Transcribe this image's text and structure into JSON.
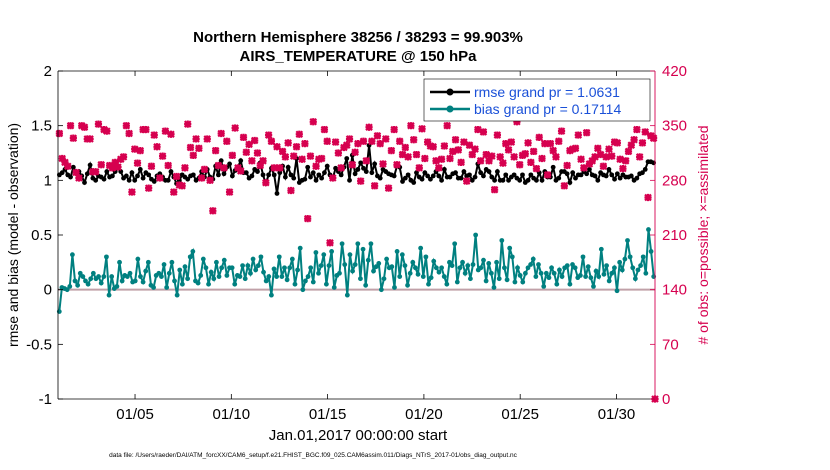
{
  "chart_data": {
    "type": "line",
    "title_line1": "Northern Hemisphere 38256 / 38293 = 99.903%",
    "title_line2": "AIRS_TEMPERATURE @ 150 hPa",
    "xlabel": "Jan.01,2017 00:00:00 start",
    "ylabel_left": "rmse and bias (model - observation)",
    "ylabel_right": "# of obs: o=possible; ×=assimilated",
    "footer": "data file: /Users/raeder/DAI/ATM_forcXX/CAM6_setup/f.e21.FHIST_BGC.f09_025.CAM6assim.011/Diags_NTrS_2017-01/obs_diag_output.nc",
    "xlim": [
      1.0,
      32.0
    ],
    "ylim_left": [
      -1,
      2
    ],
    "ylim_right": [
      0,
      420
    ],
    "x_ticks": [
      {
        "value": 5,
        "label": "01/05"
      },
      {
        "value": 10,
        "label": "01/10"
      },
      {
        "value": 15,
        "label": "01/15"
      },
      {
        "value": 20,
        "label": "01/20"
      },
      {
        "value": 25,
        "label": "01/25"
      },
      {
        "value": 30,
        "label": "01/30"
      }
    ],
    "y_ticks_left": [
      "-1",
      "-0.5",
      "0",
      "0.5",
      "1",
      "1.5",
      "2"
    ],
    "y_ticks_right": [
      "0",
      "70",
      "140",
      "210",
      "280",
      "350",
      "420"
    ],
    "colors": {
      "rmse": "#000000",
      "bias": "#008080",
      "obs": "#d6004f",
      "zero_line": "#c0a0a8"
    },
    "legend_position": "top-right",
    "series": [
      {
        "name": "rmse grand pr = 1.0631",
        "color": "#000000",
        "axis": "left",
        "values": [
          1.05,
          1.07,
          1.1,
          1.05,
          1.03,
          1.12,
          1.07,
          1.08,
          1.04,
          0.98,
          1.06,
          1.14,
          1.02,
          1.0,
          1.04,
          1.03,
          1.01,
          1.08,
          1.03,
          1.04,
          1.08,
          1.13,
          1.08,
          1.02,
          1.04,
          1.0,
          1.07,
          1.0,
          1.04,
          1.1,
          1.02,
          1.07,
          1.05,
          1.01,
          0.99,
          1.04,
          1.06,
          1.03,
          1.0,
          1.0,
          1.08,
          1.03,
          0.97,
          1.0,
          1.05,
          1.03,
          1.01,
          1.04,
          1.05,
          1.0,
          1.02,
          1.08,
          1.03,
          1.1,
          1.03,
          1.01,
          1.13,
          1.05,
          1.18,
          1.06,
          1.12,
          1.15,
          1.04,
          1.09,
          1.12,
          1.18,
          1.07,
          1.07,
          1.02,
          1.04,
          1.1,
          1.08,
          1.16,
          1.05,
          0.97,
          1.05,
          1.11,
          1.05,
          0.88,
          1.07,
          1.13,
          1.03,
          1.12,
          1.05,
          1.02,
          1.2,
          0.98,
          1.0,
          1.01,
          1.12,
          1.03,
          1.07,
          1.0,
          1.05,
          1.02,
          1.07,
          1.13,
          1.05,
          1.02,
          1.11,
          1.08,
          1.05,
          1.12,
          1.2,
          1.0,
          1.23,
          1.06,
          1.1,
          1.16,
          1.11,
          1.08,
          1.32,
          1.07,
          1.15,
          1.04,
          1.02,
          1.1,
          1.08,
          1.06,
          1.05,
          1.04,
          1.13,
          1.12,
          0.99,
          1.02,
          1.05,
          1.0,
          0.98,
          1.07,
          1.03,
          1.01,
          1.07,
          1.04,
          1.01,
          1.04,
          1.08,
          1.04,
          1.0,
          1.1,
          1.03,
          1.03,
          1.06,
          1.07,
          1.02,
          1.02,
          1.08,
          1.04,
          1.05,
          1.0,
          1.03,
          1.15,
          1.07,
          1.04,
          1.1,
          1.08,
          1.03,
          1.0,
          1.08,
          1.0,
          1.0,
          1.05,
          1.0,
          1.03,
          1.05,
          1.02,
          1.0,
          1.05,
          0.98,
          1.0,
          1.05,
          1.02,
          1.0,
          1.07,
          1.0,
          1.08,
          1.03,
          1.03,
          1.12,
          1.0,
          1.02,
          1.08,
          1.08,
          1.06,
          0.98,
          1.07,
          1.02,
          1.05,
          1.05,
          1.08,
          1.06,
          1.1,
          1.05,
          1.04,
          1.0,
          1.07,
          1.05,
          1.04,
          1.1,
          1.05,
          1.01,
          1.06,
          1.02,
          1.05,
          1.03,
          1.03,
          1.04,
          1.0,
          1.02,
          1.06,
          1.07,
          1.1,
          1.17,
          1.17,
          1.16
        ]
      },
      {
        "name": "bias grand pr = 0.17114",
        "color": "#008080",
        "axis": "left",
        "values": [
          -0.2,
          0.02,
          0.01,
          0.0,
          0.03,
          0.32,
          0.08,
          0.04,
          0.15,
          0.12,
          0.08,
          0.05,
          0.1,
          0.15,
          0.1,
          0.12,
          0.06,
          0.12,
          0.3,
          -0.05,
          0.12,
          0.01,
          0.03,
          0.25,
          0.08,
          0.13,
          0.12,
          0.15,
          0.07,
          0.08,
          0.28,
          0.12,
          0.07,
          0.17,
          0.25,
          0.04,
          0.02,
          0.13,
          0.15,
          0.12,
          0.23,
          0.02,
          0.15,
          0.25,
          0.08,
          -0.05,
          0.18,
          0.05,
          0.21,
          0.1,
          0.3,
          0.35,
          0.08,
          0.06,
          0.13,
          0.28,
          0.2,
          0.05,
          0.16,
          0.1,
          0.25,
          0.12,
          0.2,
          0.27,
          0.13,
          0.2,
          0.2,
          0.05,
          0.13,
          0.12,
          0.22,
          0.1,
          0.22,
          0.15,
          0.28,
          0.18,
          0.22,
          0.3,
          0.16,
          0.08,
          0.12,
          -0.05,
          0.19,
          0.12,
          0.3,
          0.12,
          0.2,
          0.09,
          0.2,
          0.28,
          0.05,
          0.18,
          0.38,
          0.0,
          0.08,
          0.12,
          0.2,
          0.07,
          0.34,
          0.15,
          0.22,
          0.32,
          0.05,
          0.22,
          0.35,
          0.02,
          0.13,
          0.15,
          0.42,
          0.23,
          -0.05,
          0.32,
          0.17,
          0.23,
          0.42,
          0.1,
          0.37,
          0.04,
          0.27,
          0.42,
          0.17,
          0.21,
          0.24,
          0.0,
          0.1,
          0.28,
          0.2,
          0.21,
          0.02,
          0.35,
          0.12,
          0.32,
          0.22,
          0.04,
          0.15,
          0.25,
          0.2,
          0.14,
          0.38,
          0.12,
          0.3,
          0.05,
          0.11,
          0.26,
          0.2,
          0.16,
          0.2,
          0.12,
          0.05,
          0.25,
          0.22,
          0.42,
          0.07,
          0.2,
          0.25,
          0.15,
          0.22,
          0.1,
          0.23,
          0.5,
          0.18,
          0.2,
          0.27,
          0.08,
          0.24,
          0.15,
          0.02,
          0.25,
          0.1,
          0.45,
          0.2,
          0.09,
          0.38,
          0.3,
          0.07,
          0.2,
          0.13,
          0.07,
          0.15,
          0.2,
          0.23,
          0.28,
          0.12,
          0.23,
          0.15,
          0.03,
          0.15,
          0.11,
          0.2,
          0.15,
          0.05,
          0.18,
          0.12,
          0.2,
          0.22,
          0.05,
          0.23,
          0.2,
          0.11,
          0.13,
          0.3,
          0.12,
          0.21,
          0.11,
          0.03,
          0.17,
          0.12,
          0.37,
          0.14,
          0.22,
          0.08,
          0.15,
          0.2,
          -0.01,
          0.25,
          0.18,
          0.28,
          0.45,
          0.3,
          0.2,
          0.1,
          0.18,
          0.22,
          0.3,
          0.15,
          0.55,
          0.35,
          0.12
        ]
      },
      {
        "name": "",
        "color": "#d6004f",
        "axis": "right",
        "marker": "x-cross",
        "values": [
          340,
          308,
          303,
          298,
          350,
          334,
          290,
          283,
          350,
          348,
          333,
          333,
          291,
          291,
          352,
          300,
          345,
          343,
          299,
          296,
          303,
          297,
          307,
          310,
          350,
          340,
          265,
          320,
          302,
          318,
          345,
          345,
          270,
          298,
          338,
          323,
          283,
          311,
          343,
          299,
          339,
          265,
          285,
          274,
          273,
          296,
          352,
          322,
          312,
          333,
          321,
          283,
          294,
          333,
          280,
          241,
          318,
          299,
          340,
          296,
          330,
          265,
          312,
          347,
          296,
          292,
          335,
          316,
          326,
          305,
          331,
          315,
          299,
          305,
          277,
          338,
          330,
          296,
          323,
          296,
          317,
          310,
          328,
          267,
          311,
          323,
          339,
          307,
          327,
          231,
          311,
          355,
          298,
          307,
          308,
          345,
          330,
          200,
          283,
          329,
          315,
          296,
          322,
          325,
          333,
          300,
          316,
          327,
          279,
          330,
          305,
          348,
          330,
          273,
          337,
          327,
          301,
          333,
          270,
          318,
          345,
          300,
          330,
          313,
          322,
          310,
          350,
          332,
          313,
          296,
          346,
          308,
          329,
          324,
          323,
          305,
          296,
          307,
          324,
          350,
          308,
          317,
          332,
          319,
          303,
          329,
          279,
          325,
          313,
          320,
          345,
          305,
          342,
          313,
          305,
          311,
          268,
          338,
          310,
          302,
          327,
          319,
          329,
          310,
          355,
          300,
          312,
          314,
          328,
          303,
          317,
          295,
          335,
          308,
          327,
          287,
          327,
          318,
          310,
          330,
          343,
          273,
          299,
          318,
          320,
          321,
          338,
          307,
          296,
          341,
          301,
          305,
          310,
          321,
          313,
          298,
          310,
          320,
          311,
          329,
          328,
          307,
          295,
          305,
          317,
          325,
          332,
          345,
          310,
          328,
          342,
          258,
          337,
          334
        ]
      }
    ],
    "obs_extra": [
      {
        "x": 32.0,
        "y": 0
      }
    ]
  }
}
